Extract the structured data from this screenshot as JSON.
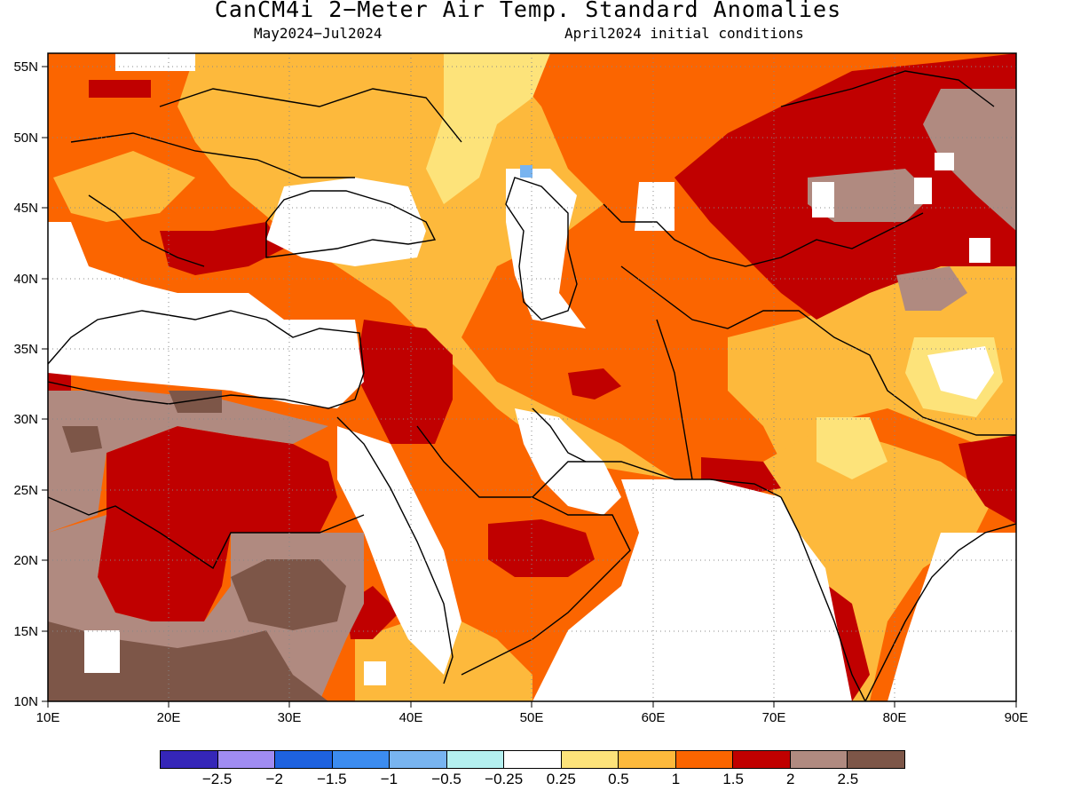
{
  "title": "CanCM4i 2−Meter Air Temp. Standard Anomalies",
  "subtitle_left": "May2024−Jul2024",
  "subtitle_right": "April2024 initial conditions",
  "colors": {
    "neg_2_5": "#3526b8",
    "neg_2": "#a08cf2",
    "neg_1_5": "#1e62e0",
    "neg_1": "#3c8cf0",
    "neg_0_5": "#78b4f0",
    "neg_0_25": "#b4f0f0",
    "neutral": "#ffffff",
    "pos_0_25": "#fde37a",
    "pos_0_5": "#fdb93c",
    "pos_1": "#fb6500",
    "pos_1_5": "#c00000",
    "pos_2": "#b08a80",
    "pos_2_5": "#7d5648"
  },
  "map": {
    "lon_range": [
      10,
      90
    ],
    "lat_range": [
      10,
      56
    ],
    "x_ticks": [
      "10E",
      "20E",
      "30E",
      "40E",
      "50E",
      "60E",
      "70E",
      "80E",
      "90E"
    ],
    "y_ticks": [
      "10N",
      "15N",
      "20N",
      "25N",
      "30N",
      "35N",
      "40N",
      "45N",
      "50N",
      "55N"
    ],
    "gridlines": "dotted"
  },
  "colorbar": {
    "colors": [
      "#3526b8",
      "#a08cf2",
      "#1e62e0",
      "#3c8cf0",
      "#78b4f0",
      "#b4f0f0",
      "#ffffff",
      "#fde37a",
      "#fdb93c",
      "#fb6500",
      "#c00000",
      "#b08a80",
      "#7d5648"
    ],
    "labels": [
      "−2.5",
      "−2",
      "−1.5",
      "−1",
      "−0.5",
      "−0.25",
      "0.25",
      "0.5",
      "1",
      "1.5",
      "2",
      "2.5"
    ]
  }
}
